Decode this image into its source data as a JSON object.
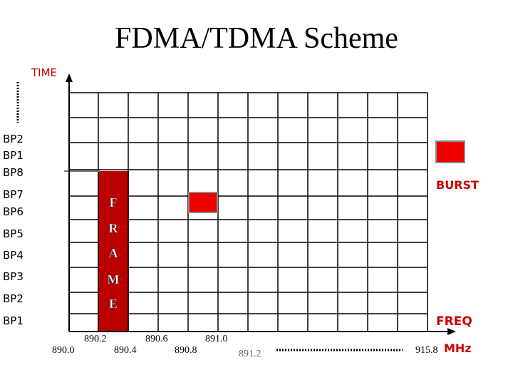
{
  "title": "FDMA/TDMA Scheme",
  "axis": {
    "y_label": "TIME",
    "x_label": "FREQ",
    "unit": "MHz"
  },
  "burst_label": "BURST",
  "bp_labels": [
    {
      "text": "BP2",
      "group": "upper"
    },
    {
      "text": "BP1",
      "group": "upper"
    },
    {
      "text": "BP8",
      "group": "upper"
    },
    {
      "text": "BP7",
      "group": "lower"
    },
    {
      "text": "BP6",
      "group": "lower"
    },
    {
      "text": "BP5",
      "group": "lower"
    },
    {
      "text": "BP4",
      "group": "lower"
    },
    {
      "text": "BP3",
      "group": "lower"
    },
    {
      "text": "BP2",
      "group": "lower"
    },
    {
      "text": "BP1",
      "group": "lower"
    }
  ],
  "frame_letters": [
    "F",
    "R",
    "A",
    "M",
    "E"
  ],
  "freq_labels_top": [
    "890.2",
    "890.6",
    "891.0"
  ],
  "freq_labels_bottom": [
    "890.0",
    "890.4",
    "890.8",
    "891.2"
  ],
  "freq_end": "915.8",
  "colors": {
    "frame": "#bb0000",
    "burst": "#ee0000",
    "accent_text": "#cc0000"
  }
}
